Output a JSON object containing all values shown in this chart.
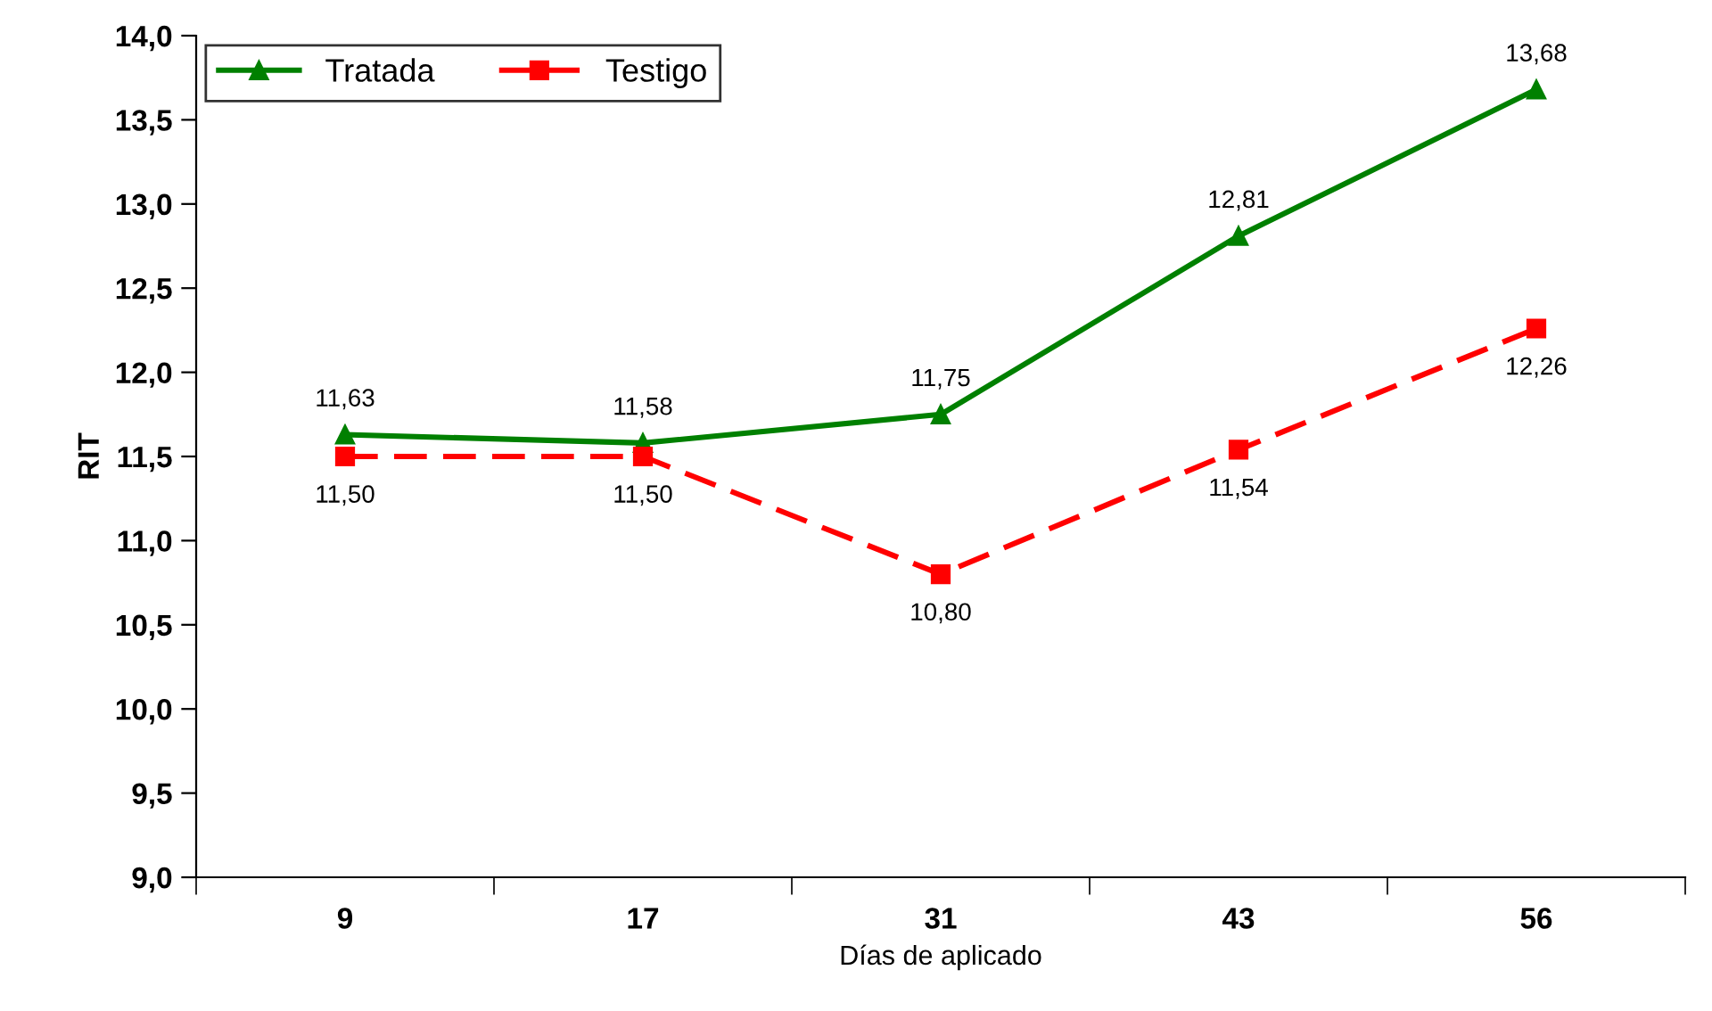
{
  "chart_data": {
    "type": "line",
    "xlabel": "Días de aplicado",
    "ylabel": "RIT",
    "categories": [
      "9",
      "17",
      "31",
      "43",
      "56"
    ],
    "series": [
      {
        "name": "Tratada",
        "color": "#008000",
        "marker": "triangle",
        "line_style": "solid",
        "values": [
          11.63,
          11.58,
          11.75,
          12.81,
          13.68
        ],
        "value_labels": [
          "11,63",
          "11,58",
          "11,75",
          "12,81",
          "13,68"
        ]
      },
      {
        "name": "Testigo",
        "color": "#ff0000",
        "marker": "square",
        "line_style": "dashed",
        "values": [
          11.5,
          11.5,
          10.8,
          11.54,
          12.26
        ],
        "value_labels": [
          "11,50",
          "11,50",
          "10,80",
          "11,54",
          "12,26"
        ]
      }
    ],
    "ylim": [
      9,
      14
    ],
    "yticks": [
      {
        "value": 9,
        "label": "9,0"
      },
      {
        "value": 9.5,
        "label": "9,5"
      },
      {
        "value": 10,
        "label": "10,0"
      },
      {
        "value": 10.5,
        "label": "10,5"
      },
      {
        "value": 11,
        "label": "11,0"
      },
      {
        "value": 11.5,
        "label": "11,5"
      },
      {
        "value": 12,
        "label": "12,0"
      },
      {
        "value": 12.5,
        "label": "12,5"
      },
      {
        "value": 13,
        "label": "13,0"
      },
      {
        "value": 13.5,
        "label": "13,5"
      },
      {
        "value": 14,
        "label": "14,0"
      }
    ],
    "grid": false,
    "legend": "top left"
  }
}
